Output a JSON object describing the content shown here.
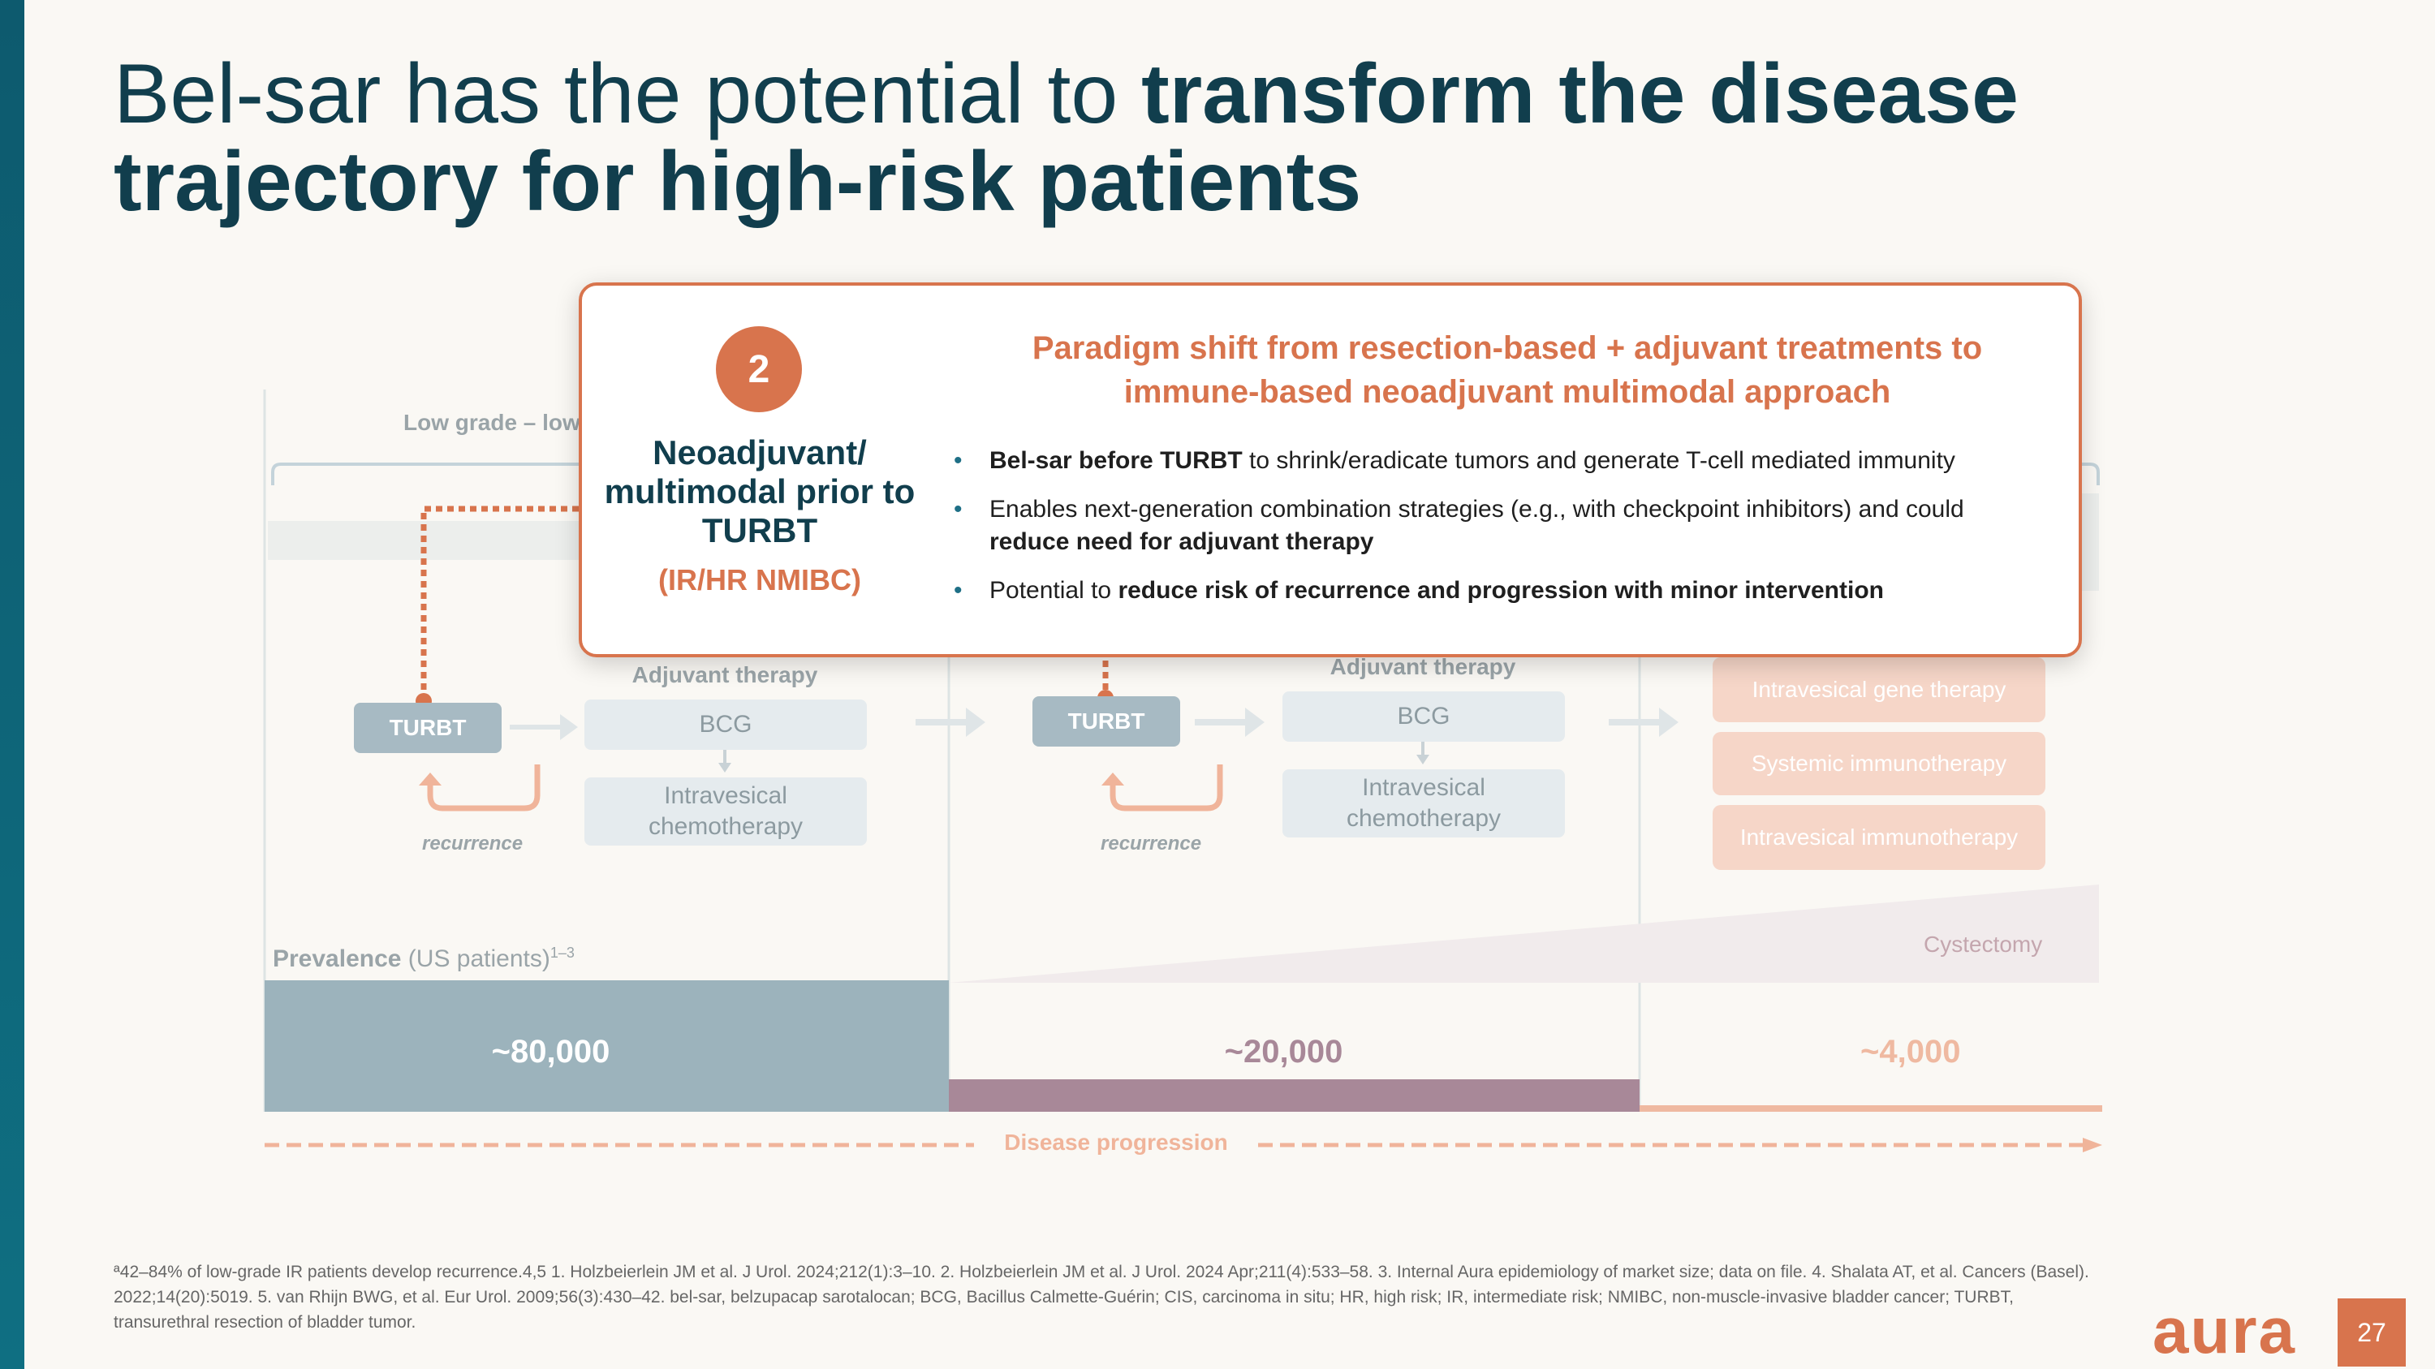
{
  "title": {
    "part1": "Bel-sar has the potential to ",
    "part2": "transform the disease",
    "line2": "trajectory for high-risk patients"
  },
  "diagram": {
    "low_grade_label": "Low grade – low",
    "stage1": {
      "turbt": "TURBT",
      "adjuvant_label": "Adjuvant therapy",
      "bcg": "BCG",
      "chemo": "Intravesical chemotherapy",
      "recurrence": "recurrence"
    },
    "stage2": {
      "turbt": "TURBT",
      "adjuvant_label": "Adjuvant therapy",
      "bcg": "BCG",
      "chemo": "Intravesical chemotherapy",
      "recurrence": "recurrence"
    },
    "stage3": {
      "options": [
        "Intravesical gene therapy",
        "Systemic immunotherapy",
        "Intravesical immunotherapy"
      ],
      "cystectomy": "Cystectomy"
    },
    "prevalence": {
      "label_bold": "Prevalence",
      "label_rest": " (US patients)",
      "sup": "1–3",
      "values": [
        "~80,000",
        "~20,000",
        "~4,000"
      ]
    },
    "progression_label": "Disease progression"
  },
  "popup": {
    "number": "2",
    "heading": "Neoadjuvant/ multimodal prior to TURBT",
    "subheading": "(IR/HR NMIBC)",
    "title_line1": "Paradigm shift from resection-based + adjuvant treatments to",
    "title_line2": "immune-based neoadjuvant multimodal approach",
    "bullets": [
      {
        "bold": "Bel-sar before TURBT",
        "rest": " to shrink/eradicate tumors and generate T-cell mediated immunity",
        "pre": ""
      },
      {
        "pre": "Enables next-generation combination strategies (e.g., with checkpoint inhibitors) and could ",
        "bold": "reduce need for adjuvant therapy",
        "rest": ""
      },
      {
        "pre": "Potential to ",
        "bold": "reduce risk of recurrence and progression with minor intervention",
        "rest": ""
      }
    ]
  },
  "footnote": {
    "text": "ª42–84% of low-grade IR patients develop recurrence.4,5 1. Holzbeierlein JM et al. J Urol. 2024;212(1):3–10. 2. Holzbeierlein JM et al. J Urol. 2024 Apr;211(4):533–58. 3. Internal Aura epidemiology of market size; data on file. 4. Shalata AT, et al. Cancers (Basel). 2022;14(20):5019. 5. van Rhijn BWG, et al. Eur Urol. 2009;56(3):430–42. bel-sar, belzupacap sarotalocan; BCG, Bacillus Calmette-Guérin; CIS, carcinoma in situ; HR, high risk; IR, intermediate risk; NMIBC, non-muscle-invasive bladder cancer; TURBT, transurethral resection of bladder tumor."
  },
  "brand": {
    "logo": "aura",
    "page_number": "27"
  },
  "colors": {
    "accent": "#d8744d",
    "navy": "#113e4d",
    "teal": "#0f6f82"
  }
}
